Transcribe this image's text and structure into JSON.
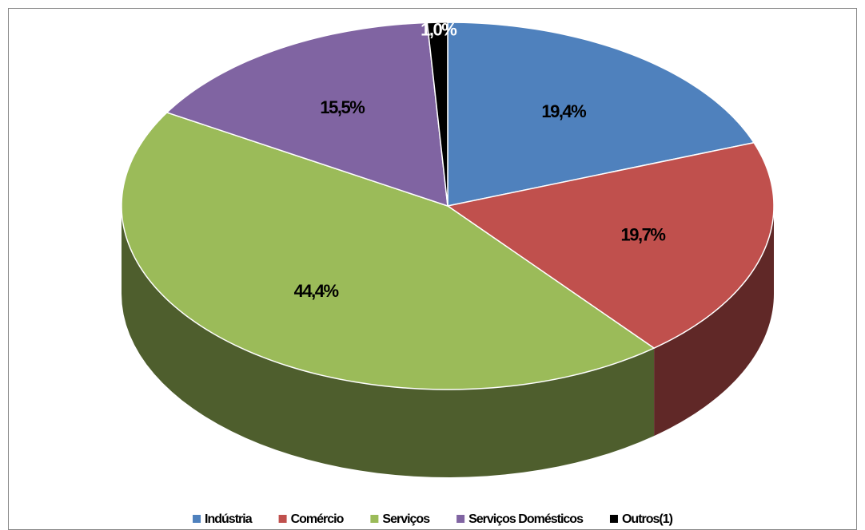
{
  "chart_data": {
    "type": "pie3d",
    "categories": [
      "Indústria",
      "Comércio",
      "Serviços",
      "Serviços Domésticos",
      "Outros(1)"
    ],
    "values": [
      19.4,
      19.7,
      44.4,
      15.5,
      1.0
    ],
    "value_labels": [
      "19,4%",
      "19,7%",
      "44,4%",
      "15,5%",
      "1,0%"
    ],
    "colors": [
      "#4f81bd",
      "#c0504d",
      "#9bbb59",
      "#8064a2",
      "#000000"
    ],
    "legend": "bottom"
  }
}
